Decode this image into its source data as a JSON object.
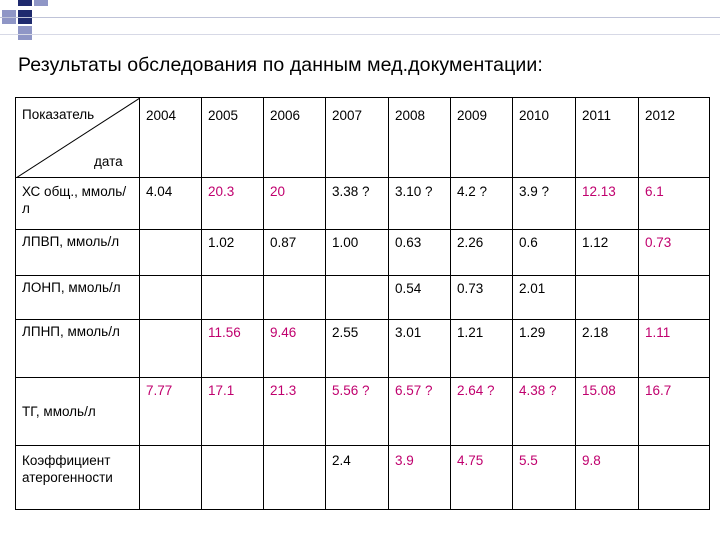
{
  "title": "Результаты обследования по данным мед.документации:",
  "table": {
    "corner_top": "Показатель",
    "corner_bottom": "дата",
    "years": [
      "2004",
      "2005",
      "2006",
      "2007",
      "2008",
      "2009",
      "2010",
      "2011",
      "2012"
    ],
    "rows": [
      {
        "label": "ХС общ., ммоль/л",
        "cells": [
          {
            "value": "4.04",
            "red": false
          },
          {
            "value": "20.3",
            "red": true
          },
          {
            "value": "20",
            "red": true
          },
          {
            "value": "3.38 ?",
            "red": false
          },
          {
            "value": "3.10 ?",
            "red": false
          },
          {
            "value": "4.2 ?",
            "red": false
          },
          {
            "value": "3.9 ?",
            "red": false
          },
          {
            "value": "12.13",
            "red": true
          },
          {
            "value": "6.1",
            "red": true
          }
        ]
      },
      {
        "label": "ЛПВП, ммоль/л",
        "cells": [
          {
            "value": "",
            "red": false
          },
          {
            "value": "1.02",
            "red": false
          },
          {
            "value": "0.87",
            "red": false
          },
          {
            "value": "1.00",
            "red": false
          },
          {
            "value": "0.63",
            "red": false
          },
          {
            "value": "2.26",
            "red": false
          },
          {
            "value": "0.6",
            "red": false
          },
          {
            "value": "1.12",
            "red": false
          },
          {
            "value": "0.73",
            "red": true
          }
        ]
      },
      {
        "label": "ЛОНП, ммоль/л",
        "cells": [
          {
            "value": "",
            "red": false
          },
          {
            "value": "",
            "red": false
          },
          {
            "value": "",
            "red": false
          },
          {
            "value": "",
            "red": false
          },
          {
            "value": "0.54",
            "red": false
          },
          {
            "value": "0.73",
            "red": false
          },
          {
            "value": "2.01",
            "red": false
          },
          {
            "value": "",
            "red": false
          },
          {
            "value": "",
            "red": false
          }
        ]
      },
      {
        "label": "ЛПНП, ммоль/л",
        "cells": [
          {
            "value": "",
            "red": false
          },
          {
            "value": "11.56",
            "red": true
          },
          {
            "value": "9.46",
            "red": true
          },
          {
            "value": "2.55",
            "red": false
          },
          {
            "value": "3.01",
            "red": false
          },
          {
            "value": "1.21",
            "red": false
          },
          {
            "value": "1.29",
            "red": false
          },
          {
            "value": "2.18",
            "red": false
          },
          {
            "value": "1.11",
            "red": true
          }
        ]
      },
      {
        "label": "ТГ, ммоль/л",
        "cells": [
          {
            "value": "7.77",
            "red": true
          },
          {
            "value": "17.1",
            "red": true
          },
          {
            "value": "21.3",
            "red": true
          },
          {
            "value": "5.56 ?",
            "red": true
          },
          {
            "value": "6.57 ?",
            "red": true
          },
          {
            "value": "2.64 ?",
            "red": true
          },
          {
            "value": "4.38 ?",
            "red": true
          },
          {
            "value": "15.08",
            "red": true
          },
          {
            "value": "16.7",
            "red": true
          }
        ]
      },
      {
        "label": "Коэффициент атерогенности",
        "cells": [
          {
            "value": "",
            "red": false
          },
          {
            "value": "",
            "red": false
          },
          {
            "value": "",
            "red": false
          },
          {
            "value": "2.4",
            "red": false
          },
          {
            "value": "3.9",
            "red": true
          },
          {
            "value": "4.75",
            "red": true
          },
          {
            "value": "5.5",
            "red": true
          },
          {
            "value": "9.8",
            "red": true
          },
          {
            "value": "",
            "red": false
          }
        ]
      }
    ]
  },
  "colors": {
    "text": "#000000",
    "highlight": "#c0006e",
    "decor_dark": "#1f2a6e",
    "decor_light": "#8f96c6",
    "rule": "#bfc3d8"
  }
}
